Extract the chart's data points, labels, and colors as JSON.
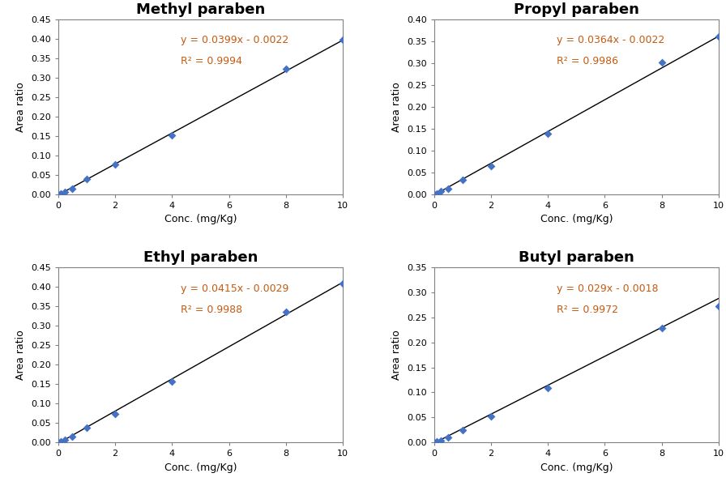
{
  "panels": [
    {
      "title": "Methyl paraben",
      "equation": "y = 0.0399x - 0.0022",
      "r2": "R² = 0.9994",
      "slope": 0.0399,
      "intercept": -0.0022,
      "x_data": [
        0,
        0.1,
        0.25,
        0.5,
        1.0,
        2.0,
        4.0,
        8.0,
        10.0
      ],
      "y_data": [
        0.0,
        0.002,
        0.006,
        0.015,
        0.038,
        0.077,
        0.152,
        0.323,
        0.397
      ],
      "ylim": [
        0,
        0.45
      ],
      "yticks": [
        0,
        0.05,
        0.1,
        0.15,
        0.2,
        0.25,
        0.3,
        0.35,
        0.4,
        0.45
      ]
    },
    {
      "title": "Propyl paraben",
      "equation": "y = 0.0364x - 0.0022",
      "r2": "R² = 0.9986",
      "slope": 0.0364,
      "intercept": -0.0022,
      "x_data": [
        0,
        0.1,
        0.25,
        0.5,
        1.0,
        2.0,
        4.0,
        8.0,
        10.0
      ],
      "y_data": [
        0.0,
        0.002,
        0.006,
        0.013,
        0.033,
        0.065,
        0.138,
        0.301,
        0.361
      ],
      "ylim": [
        0,
        0.4
      ],
      "yticks": [
        0,
        0.05,
        0.1,
        0.15,
        0.2,
        0.25,
        0.3,
        0.35,
        0.4
      ]
    },
    {
      "title": "Ethyl paraben",
      "equation": "y = 0.0415x - 0.0029",
      "r2": "R² = 0.9988",
      "slope": 0.0415,
      "intercept": -0.0029,
      "x_data": [
        0,
        0.1,
        0.25,
        0.5,
        1.0,
        2.0,
        4.0,
        8.0,
        10.0
      ],
      "y_data": [
        0.0,
        0.002,
        0.007,
        0.014,
        0.038,
        0.073,
        0.156,
        0.336,
        0.408
      ],
      "ylim": [
        0,
        0.45
      ],
      "yticks": [
        0,
        0.05,
        0.1,
        0.15,
        0.2,
        0.25,
        0.3,
        0.35,
        0.4,
        0.45
      ]
    },
    {
      "title": "Butyl paraben",
      "equation": "y = 0.029x - 0.0018",
      "r2": "R² = 0.9972",
      "slope": 0.029,
      "intercept": -0.0018,
      "x_data": [
        0,
        0.1,
        0.25,
        0.5,
        1.0,
        2.0,
        4.0,
        8.0,
        10.0
      ],
      "y_data": [
        0.0,
        0.001,
        0.004,
        0.01,
        0.025,
        0.052,
        0.108,
        0.228,
        0.272
      ],
      "ylim": [
        0,
        0.35
      ],
      "yticks": [
        0,
        0.05,
        0.1,
        0.15,
        0.2,
        0.25,
        0.3,
        0.35
      ]
    }
  ],
  "xlabel": "Conc. (mg/Kg)",
  "ylabel": "Area ratio",
  "xlim": [
    0,
    10
  ],
  "xticks": [
    0,
    2,
    4,
    6,
    8,
    10
  ],
  "marker_color": "#4472C4",
  "line_color": "#000000",
  "equation_color": "#C55A11",
  "axis_label_color": "#000000",
  "tick_label_color": "#000000",
  "spine_color": "#808080",
  "title_fontsize": 13,
  "label_fontsize": 9,
  "tick_fontsize": 8,
  "equation_fontsize": 9,
  "bg_color": "#FFFFFF"
}
